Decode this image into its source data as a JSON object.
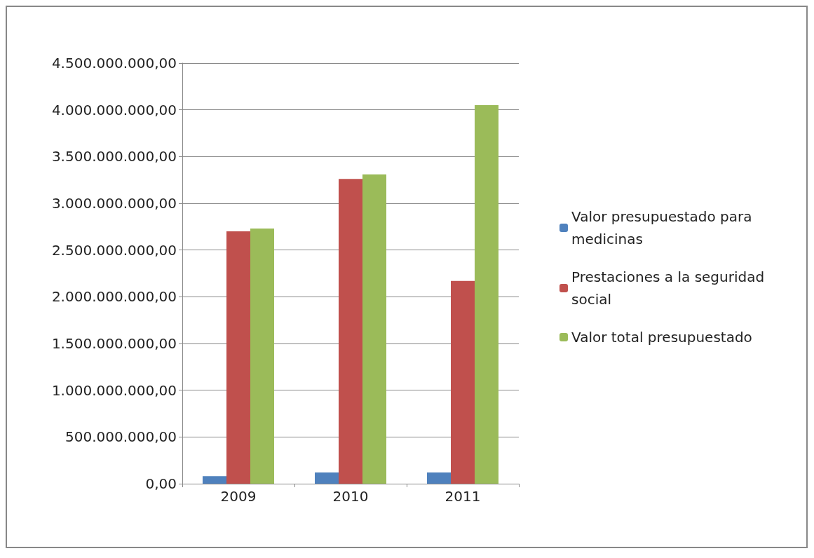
{
  "chart_data": {
    "type": "bar",
    "categories": [
      "2009",
      "2010",
      "2011"
    ],
    "series": [
      {
        "name": "Valor presupuestado para medicinas",
        "color": "#4f81bd",
        "values": [
          80000000,
          120000000,
          120000000
        ]
      },
      {
        "name": "Prestaciones a la seguridad social",
        "color": "#c0504d",
        "values": [
          2700000000,
          3260000000,
          2170000000
        ]
      },
      {
        "name": "Valor total presupuestado",
        "color": "#9bbb59",
        "values": [
          2730000000,
          3310000000,
          4050000000
        ]
      }
    ],
    "ylim": [
      0,
      4500000000
    ],
    "yticks": [
      {
        "value": 0,
        "label": "0,00"
      },
      {
        "value": 500000000,
        "label": "500.000.000,00"
      },
      {
        "value": 1000000000,
        "label": "1.000.000.000,00"
      },
      {
        "value": 1500000000,
        "label": "1.500.000.000,00"
      },
      {
        "value": 2000000000,
        "label": "2.000.000.000,00"
      },
      {
        "value": 2500000000,
        "label": "2.500.000.000,00"
      },
      {
        "value": 3000000000,
        "label": "3.000.000.000,00"
      },
      {
        "value": 3500000000,
        "label": "3.500.000.000,00"
      },
      {
        "value": 4000000000,
        "label": "4.000.000.000,00"
      },
      {
        "value": 4500000000,
        "label": "4.500.000.000,00"
      }
    ],
    "grid": "y",
    "legend": "right"
  }
}
